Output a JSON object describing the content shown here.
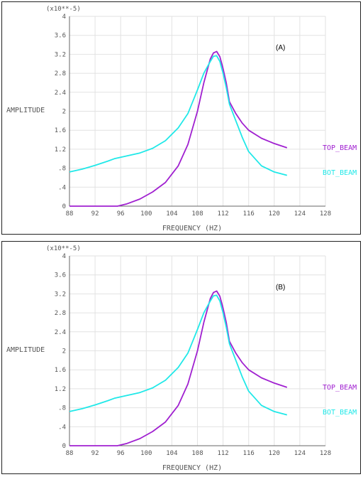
{
  "chart_data": [
    {
      "type": "line",
      "panel_label": "(A)",
      "scale_label": "(x10**-5)",
      "xlabel": "FREQUENCY (HZ)",
      "ylabel": "AMPLITUDE",
      "xlim": [
        88,
        128
      ],
      "ylim": [
        0,
        4
      ],
      "x_ticks": [
        "88",
        "92",
        "96",
        "100",
        "104",
        "108",
        "112",
        "116",
        "120",
        "124",
        "128"
      ],
      "y_ticks": [
        "0",
        ".4",
        ".8",
        "1.2",
        "1.6",
        "2",
        "2.4",
        "2.8",
        "3.2",
        "3.6",
        "4"
      ],
      "grid": true,
      "legend_position": "right",
      "series": [
        {
          "name": "TOP_BEAM",
          "color": "#a020d0",
          "x": [
            88,
            90,
            92,
            94,
            95.5,
            97,
            99,
            101,
            103,
            105,
            106.5,
            108,
            109,
            110,
            110.5,
            111,
            111.5,
            112,
            112.5,
            113,
            114,
            115,
            116,
            118,
            120,
            122
          ],
          "y": [
            0,
            0,
            0,
            0,
            0,
            0.05,
            0.15,
            0.3,
            0.5,
            0.85,
            1.3,
            2.0,
            2.6,
            3.1,
            3.23,
            3.26,
            3.15,
            2.9,
            2.6,
            2.2,
            1.95,
            1.75,
            1.6,
            1.43,
            1.32,
            1.23
          ]
        },
        {
          "name": "BOT_BEAM",
          "color": "#20e8e8",
          "x": [
            88,
            90,
            92,
            94,
            95,
            97,
            99,
            101,
            103,
            105,
            106.5,
            108,
            109,
            110,
            110.5,
            111,
            111.5,
            112,
            112.5,
            113,
            114,
            115,
            116,
            118,
            120,
            122
          ],
          "y": [
            0.72,
            0.78,
            0.86,
            0.95,
            1.0,
            1.06,
            1.12,
            1.22,
            1.38,
            1.65,
            1.95,
            2.45,
            2.8,
            3.05,
            3.16,
            3.17,
            3.05,
            2.8,
            2.5,
            2.15,
            1.8,
            1.45,
            1.15,
            0.85,
            0.72,
            0.65
          ]
        }
      ]
    },
    {
      "type": "line",
      "panel_label": "(B)",
      "scale_label": "(x10**-5)",
      "xlabel": "FREQUENCY (HZ)",
      "ylabel": "AMPLITUDE",
      "xlim": [
        88,
        128
      ],
      "ylim": [
        0,
        4
      ],
      "x_ticks": [
        "88",
        "92",
        "96",
        "100",
        "104",
        "108",
        "112",
        "116",
        "120",
        "124",
        "128"
      ],
      "y_ticks": [
        "0",
        ".4",
        ".8",
        "1.2",
        "1.6",
        "2",
        "2.4",
        "2.8",
        "3.2",
        "3.6",
        "4"
      ],
      "grid": true,
      "legend_position": "right",
      "series": [
        {
          "name": "TOP_BEAM",
          "color": "#a020d0",
          "x": [
            88,
            90,
            92,
            94,
            95.5,
            97,
            99,
            101,
            103,
            105,
            106.5,
            108,
            109,
            110,
            110.5,
            111,
            111.5,
            112,
            112.5,
            113,
            114,
            115,
            116,
            118,
            120,
            122
          ],
          "y": [
            0,
            0,
            0,
            0,
            0,
            0.05,
            0.15,
            0.3,
            0.5,
            0.85,
            1.3,
            2.0,
            2.6,
            3.1,
            3.23,
            3.26,
            3.15,
            2.9,
            2.6,
            2.2,
            1.95,
            1.75,
            1.6,
            1.43,
            1.32,
            1.23
          ]
        },
        {
          "name": "BOT_BEAM",
          "color": "#20e8e8",
          "x": [
            88,
            90,
            92,
            94,
            95,
            97,
            99,
            101,
            103,
            105,
            106.5,
            108,
            109,
            110,
            110.5,
            111,
            111.5,
            112,
            112.5,
            113,
            114,
            115,
            116,
            118,
            120,
            122
          ],
          "y": [
            0.72,
            0.78,
            0.86,
            0.95,
            1.0,
            1.06,
            1.12,
            1.22,
            1.38,
            1.65,
            1.95,
            2.45,
            2.8,
            3.05,
            3.16,
            3.17,
            3.05,
            2.8,
            2.5,
            2.15,
            1.8,
            1.45,
            1.15,
            0.85,
            0.72,
            0.65
          ]
        }
      ]
    }
  ]
}
